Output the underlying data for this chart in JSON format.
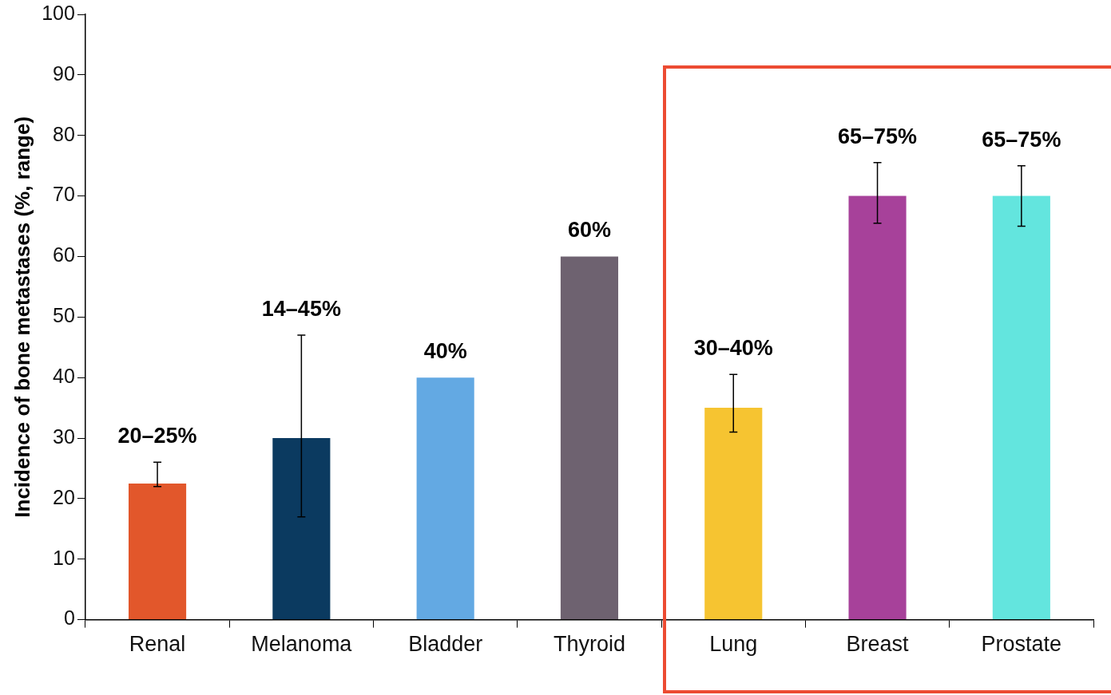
{
  "chart_data": {
    "type": "bar",
    "ylabel": "Incidence of bone metastases (%, range)",
    "categories": [
      "Renal",
      "Melanoma",
      "Bladder",
      "Thyroid",
      "Lung",
      "Breast",
      "Prostate"
    ],
    "values": [
      22.5,
      30,
      40,
      60,
      35,
      70,
      70
    ],
    "colors": [
      "#e2572b",
      "#0b3a60",
      "#63a9e3",
      "#6e6270",
      "#f6c431",
      "#a7419a",
      "#63e5de"
    ],
    "errors": [
      [
        22,
        26
      ],
      [
        17,
        47
      ],
      null,
      null,
      [
        31,
        40.5
      ],
      [
        65.5,
        75.5
      ],
      [
        65,
        75
      ]
    ],
    "annotations": [
      {
        "text": "20–25%",
        "x": "Renal",
        "y": 22.5
      },
      {
        "text": "14–45%",
        "x": "Melanoma",
        "y": 47
      },
      {
        "text": "40%",
        "x": "Bladder",
        "y": 40
      },
      {
        "text": "60%",
        "x": "Thyroid",
        "y": 60
      },
      {
        "text": "30–40%",
        "x": "Lung",
        "y": 35
      },
      {
        "text": "65–75%",
        "x": "Breast",
        "y": 70
      },
      {
        "text": "65–75%",
        "x": "Prostate",
        "y": 70
      }
    ],
    "ylim": [
      0,
      100
    ],
    "yticks": [
      0,
      10,
      20,
      30,
      40,
      50,
      60,
      70,
      80,
      90,
      100
    ],
    "grid": false,
    "legend": false
  }
}
